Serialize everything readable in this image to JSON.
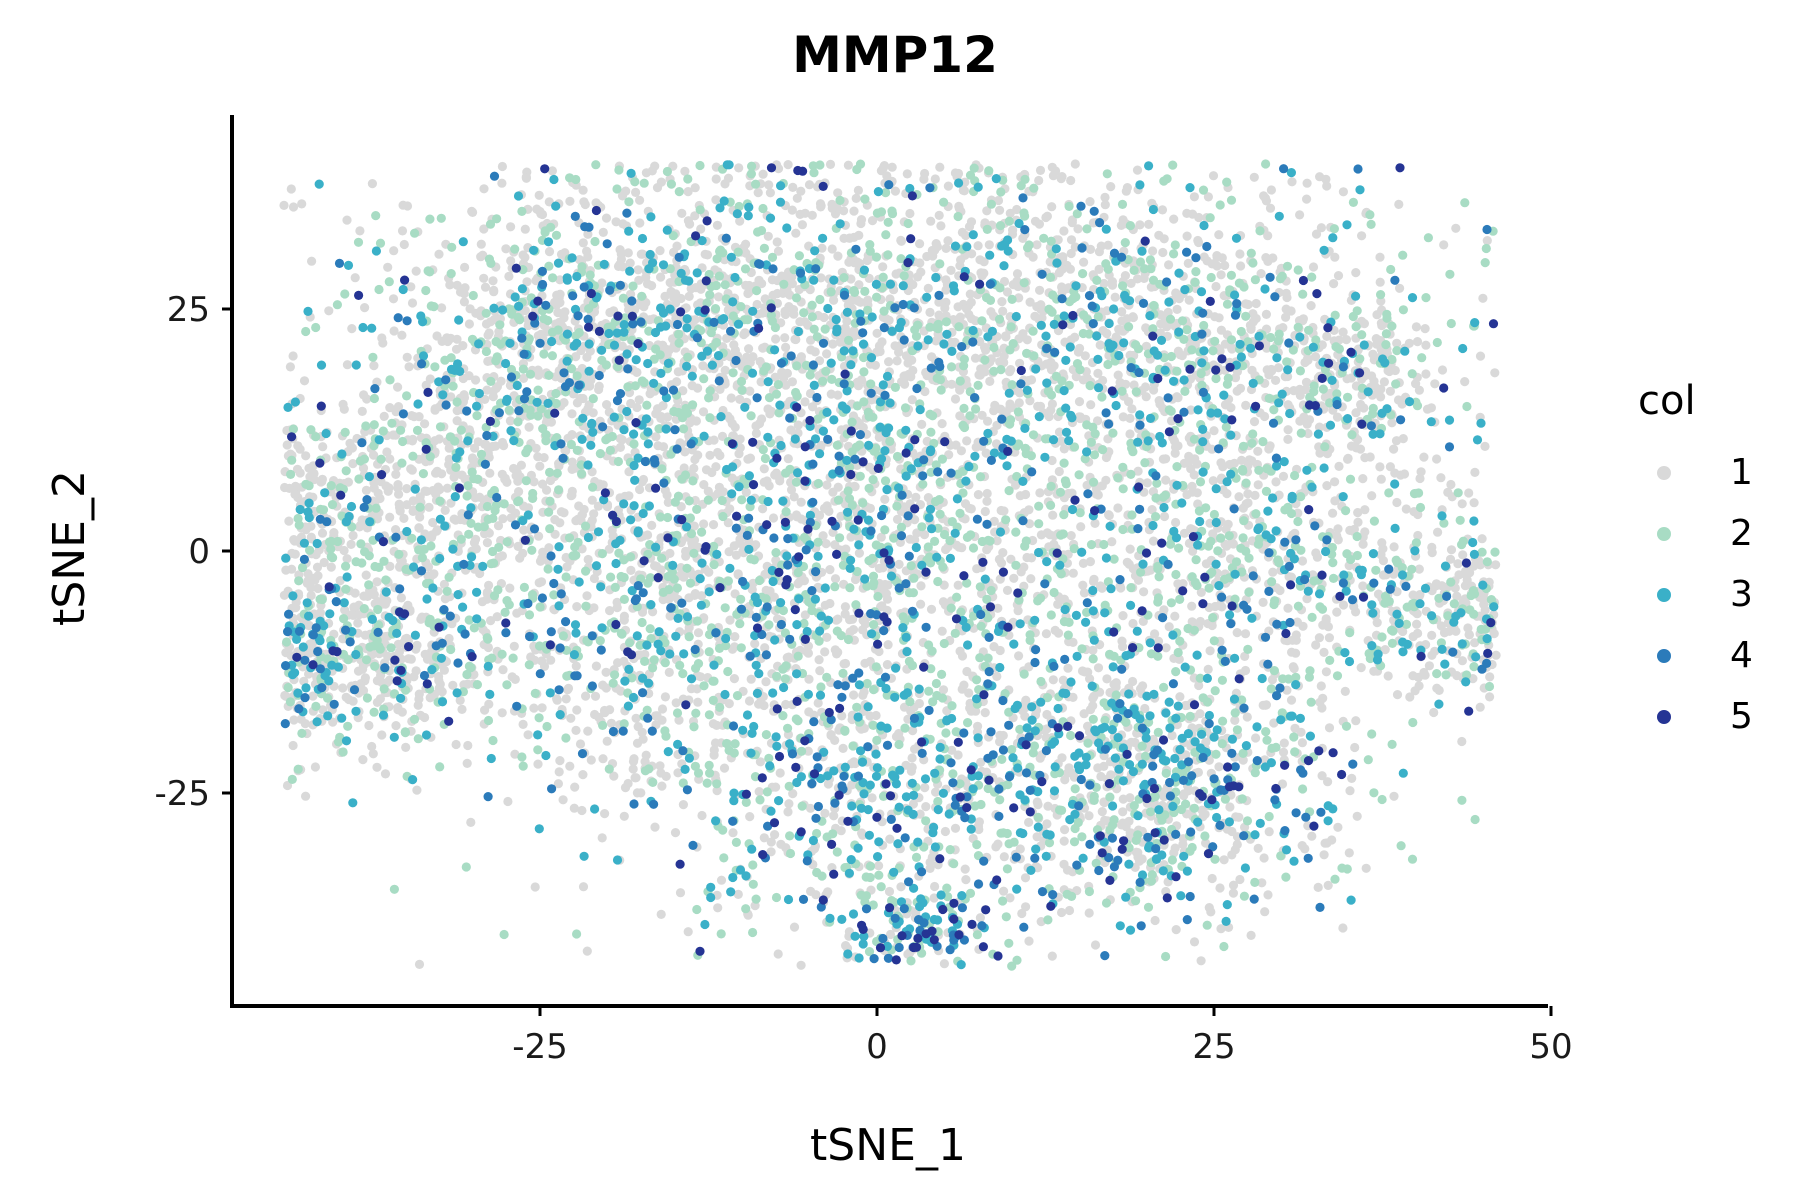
{
  "chart_data": {
    "type": "scatter",
    "title": "MMP12",
    "xlabel": "tSNE_1",
    "ylabel": "tSNE_2",
    "xlim": [
      -47,
      50
    ],
    "ylim": [
      -47,
      45
    ],
    "x_ticks": [
      -25,
      0,
      25,
      50
    ],
    "x_tick_labels": [
      "-25",
      "0",
      "25",
      "50"
    ],
    "y_ticks": [
      -25,
      0,
      25
    ],
    "y_tick_labels": [
      "-25",
      "0",
      "25"
    ],
    "grid": false,
    "legend": {
      "title": "col",
      "placement": "right",
      "entries": [
        {
          "label": "1",
          "color": "#d9d9d9"
        },
        {
          "label": "2",
          "color": "#a8dcc4"
        },
        {
          "label": "3",
          "color": "#3ab0c8"
        },
        {
          "label": "4",
          "color": "#2b7bba"
        },
        {
          "label": "5",
          "color": "#253494"
        }
      ]
    },
    "series": [
      {
        "name": "1",
        "color": "#d9d9d9",
        "approx_share": 0.6
      },
      {
        "name": "2",
        "color": "#a8dcc4",
        "approx_share": 0.2
      },
      {
        "name": "3",
        "color": "#3ab0c8",
        "approx_share": 0.11
      },
      {
        "name": "4",
        "color": "#2b7bba",
        "approx_share": 0.06
      },
      {
        "name": "5",
        "color": "#253494",
        "approx_share": 0.03
      }
    ],
    "clusters": [
      {
        "cx": -35,
        "cy": 5,
        "sx": 7,
        "sy": 6,
        "w": 0.07,
        "hot": 0.1
      },
      {
        "cx": -38,
        "cy": -11,
        "sx": 6,
        "sy": 5,
        "w": 0.06,
        "hot": 0.3
      },
      {
        "cx": -22,
        "cy": 22,
        "sx": 9,
        "sy": 8,
        "w": 0.12,
        "hot": 0.3
      },
      {
        "cx": -1,
        "cy": 25,
        "sx": 11,
        "sy": 9,
        "w": 0.14,
        "hot": 0.15
      },
      {
        "cx": 22,
        "cy": 22,
        "sx": 10,
        "sy": 8,
        "w": 0.12,
        "hot": 0.3
      },
      {
        "cx": 35,
        "cy": 18,
        "sx": 3,
        "sy": 3,
        "w": 0.02,
        "hot": 0.2
      },
      {
        "cx": -17,
        "cy": -5,
        "sx": 8,
        "sy": 9,
        "w": 0.1,
        "hot": 0.3
      },
      {
        "cx": 0,
        "cy": 2,
        "sx": 8,
        "sy": 9,
        "w": 0.1,
        "hot": 0.4
      },
      {
        "cx": 25,
        "cy": -2,
        "sx": 10,
        "sy": 9,
        "w": 0.1,
        "hot": 0.35
      },
      {
        "cx": 41,
        "cy": -6,
        "sx": 4,
        "sy": 4,
        "w": 0.03,
        "hot": 0.1
      },
      {
        "cx": 3,
        "cy": -23,
        "sx": 12,
        "sy": 8,
        "w": 0.12,
        "hot": 0.6
      },
      {
        "cx": 22,
        "cy": -25,
        "sx": 7,
        "sy": 7,
        "w": 0.07,
        "hot": 0.55
      },
      {
        "cx": 3,
        "cy": -38,
        "sx": 3,
        "sy": 2.5,
        "w": 0.02,
        "hot": 0.9
      }
    ],
    "approx_point_count": 9000
  }
}
